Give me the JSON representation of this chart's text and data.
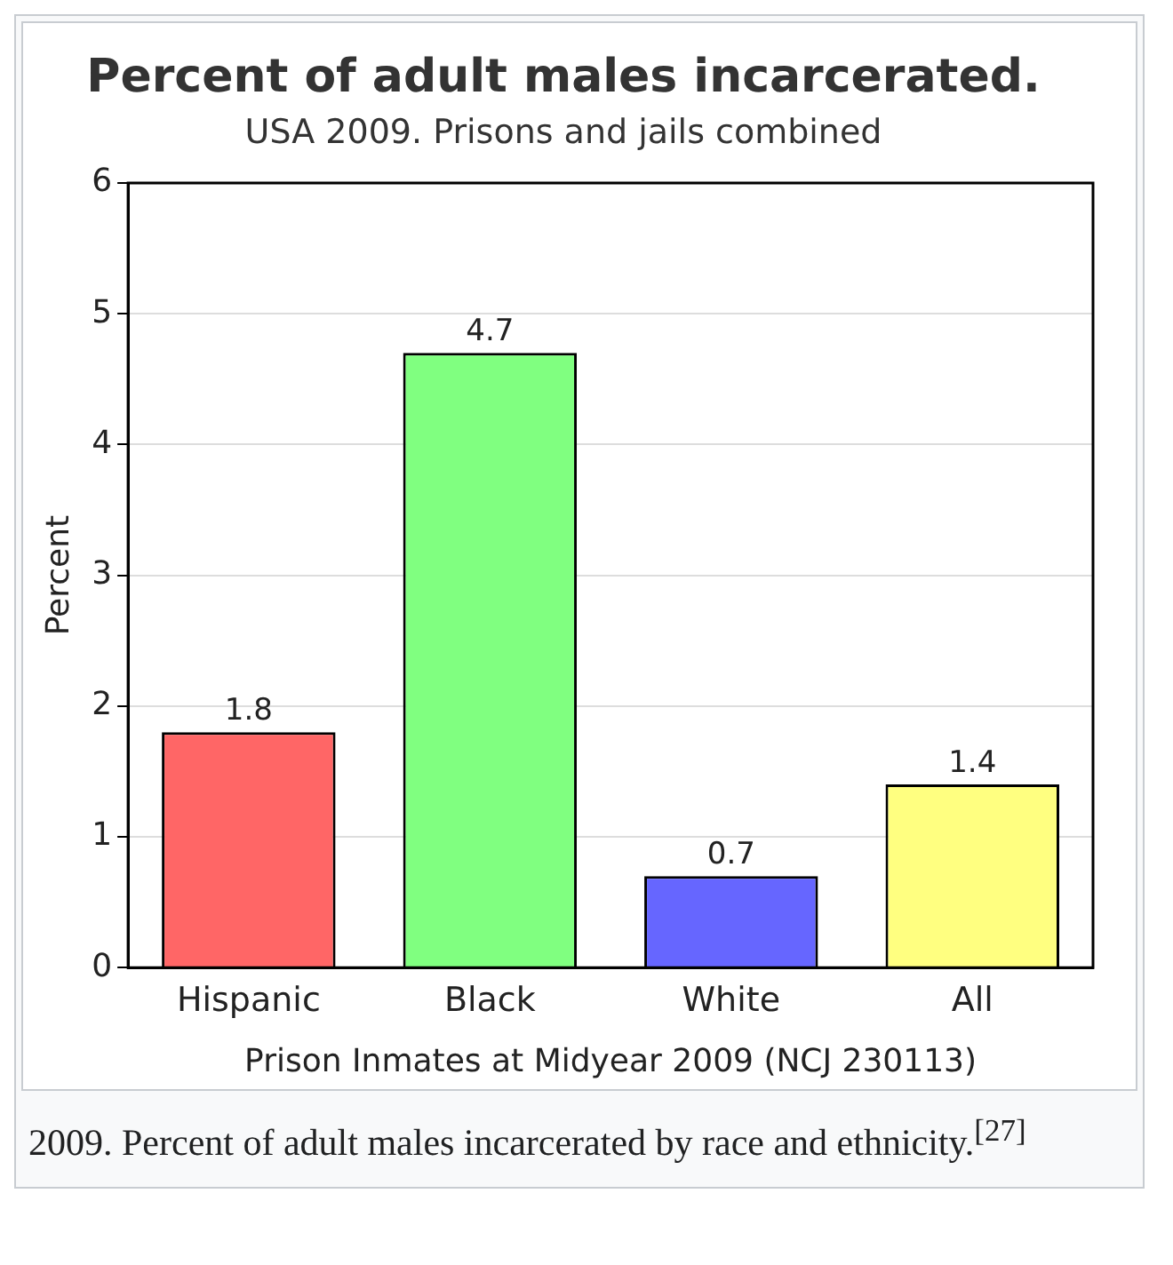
{
  "chart_data": {
    "type": "bar",
    "title": "Percent of adult males incarcerated.",
    "subtitle": "USA 2009. Prisons and jails combined",
    "categories": [
      "Hispanic",
      "Black",
      "White",
      "All"
    ],
    "values": [
      1.8,
      4.7,
      0.7,
      1.4
    ],
    "colors": [
      "#ff6666",
      "#80ff80",
      "#6666ff",
      "#ffff80"
    ],
    "ylabel": "Percent",
    "xlabel": "Prison Inmates at Midyear 2009 (NCJ 230113)",
    "ylim": [
      0,
      6
    ],
    "yticks": [
      0,
      1,
      2,
      3,
      4,
      5,
      6
    ],
    "grid": "y",
    "legend": false,
    "data_labels": true,
    "annotations": [
      "2009. Percent of adult males incarcerated by race and ethnicity.$^{[27]}$"
    ]
  }
}
